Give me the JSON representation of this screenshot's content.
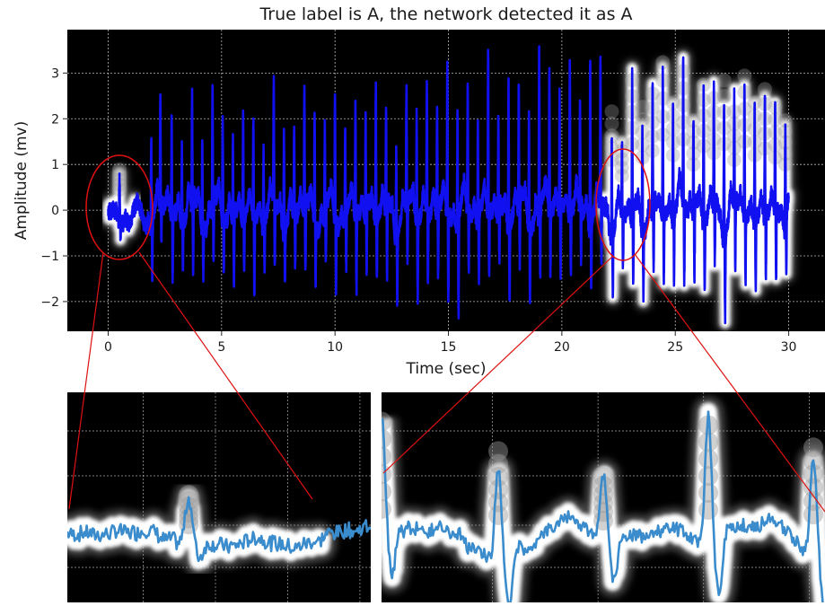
{
  "chart_data": [
    {
      "type": "line",
      "title": "True label is A, the network detected it as A",
      "xlabel": "Time (sec)",
      "ylabel": "Amplitude (mv)",
      "xlim": [
        -1.8,
        31.6
      ],
      "ylim": [
        -2.65,
        3.95
      ],
      "x_ticks": [
        0,
        5,
        10,
        15,
        20,
        25,
        30
      ],
      "y_ticks": [
        -2,
        -1,
        0,
        1,
        2,
        3
      ],
      "grid": true,
      "background": "#000000",
      "signal_color": "#1010f0",
      "highlight_color": "#ffffff",
      "series": [
        {
          "duration_sec": 30,
          "beat_times_sec": [
            0.5,
            1.9,
            2.3,
            2.8,
            3.25,
            3.7,
            4.15,
            4.6,
            5.05,
            5.5,
            5.95,
            6.4,
            6.85,
            7.3,
            7.75,
            8.2,
            8.65,
            9.1,
            9.55,
            10.0,
            10.45,
            10.9,
            11.35,
            11.8,
            12.25,
            12.7,
            13.15,
            13.6,
            14.05,
            14.5,
            14.95,
            15.4,
            15.85,
            16.3,
            16.75,
            17.2,
            17.65,
            18.1,
            18.55,
            19.0,
            19.45,
            19.9,
            20.35,
            20.8,
            21.25,
            21.7,
            22.2,
            22.65,
            23.1,
            23.55,
            24.0,
            24.45,
            24.9,
            25.35,
            25.8,
            26.25,
            26.7,
            27.15,
            27.6,
            28.05,
            28.5,
            28.95,
            29.4,
            29.85
          ],
          "r_peak_mv": [
            0.9,
            1.8,
            2.4,
            2.1,
            1.6,
            2.3,
            1.9,
            2.6,
            2.2,
            1.5,
            2.4,
            2.0,
            1.7,
            2.5,
            2.2,
            1.9,
            2.6,
            2.3,
            1.8,
            2.7,
            2.1,
            2.4,
            2.0,
            2.8,
            2.2,
            1.9,
            2.5,
            2.3,
            2.9,
            2.4,
            3.2,
            2.2,
            2.6,
            2.1,
            3.5,
            2.0,
            3.1,
            2.7,
            2.3,
            3.6,
            3.0,
            2.5,
            3.4,
            2.2,
            3.7,
            3.0,
            2.2,
            1.5,
            2.9,
            2.3,
            2.6,
            3.3,
            2.4,
            3.1,
            2.0,
            2.8,
            2.5,
            2.9,
            2.2,
            3.0,
            2.4,
            2.7,
            2.3,
            2.0
          ],
          "s_trough_mv": [
            -0.4,
            -1.3,
            -0.8,
            -1.5,
            -1.1,
            -1.7,
            -1.0,
            -1.4,
            -1.2,
            -1.6,
            -1.3,
            -1.9,
            -1.1,
            -1.5,
            -1.3,
            -1.2,
            -1.6,
            -1.4,
            -1.3,
            -1.5,
            -1.2,
            -1.7,
            -1.4,
            -1.3,
            -1.6,
            -1.5,
            -1.4,
            -1.8,
            -1.6,
            -1.5,
            -1.9,
            -2.3,
            -1.4,
            -1.6,
            -1.5,
            -1.3,
            -1.7,
            -1.4,
            -1.6,
            -1.5,
            -1.4,
            -1.6,
            -1.5,
            -1.3,
            -1.4,
            -1.2,
            -1.5,
            -1.2,
            -1.8,
            -1.5,
            -1.6,
            -1.5,
            -1.4,
            -1.7,
            -1.5,
            -1.6,
            -1.4,
            -1.8,
            -1.6,
            -1.5,
            -1.6,
            -1.4,
            -1.5,
            -1.2
          ]
        }
      ],
      "highlighted_segments_sec": [
        [
          0,
          1.2
        ],
        [
          21.8,
          30
        ]
      ]
    },
    {
      "type": "line",
      "title": "",
      "description_source": "zoom of main chart",
      "grid": true,
      "background": "#000000",
      "signal_color": "#3b8ccc"
    },
    {
      "type": "line",
      "title": "",
      "description_source": "zoom of main chart",
      "grid": true,
      "background": "#000000",
      "signal_color": "#3b8ccc"
    }
  ],
  "annotation_color": "#e01010"
}
